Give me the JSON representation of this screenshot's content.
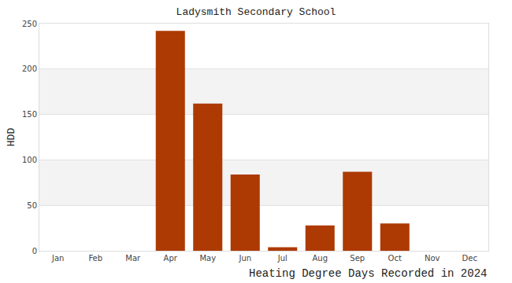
{
  "chart_data": {
    "type": "bar",
    "title": "Ladysmith Secondary School",
    "subtitle": "Heating Degree Days Recorded in 2024",
    "ylabel": "HDD",
    "categories": [
      "Jan",
      "Feb",
      "Mar",
      "Apr",
      "May",
      "Jun",
      "Jul",
      "Aug",
      "Sep",
      "Oct",
      "Nov",
      "Dec"
    ],
    "values": [
      0,
      0,
      0,
      242,
      162,
      84,
      4,
      28,
      87,
      30,
      0,
      0
    ],
    "color": "#ad3a03",
    "ylim": [
      0,
      250
    ],
    "yticks": [
      0,
      50,
      100,
      150,
      200,
      250
    ],
    "grid": true
  }
}
